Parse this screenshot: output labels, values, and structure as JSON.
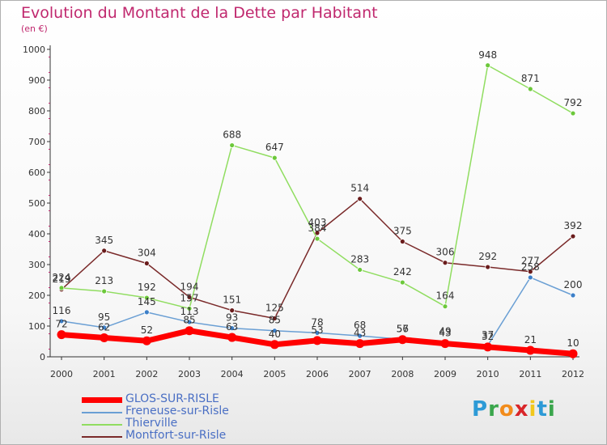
{
  "title": "Evolution du Montant de la Dette par Habitant",
  "subtitle": "(en €)",
  "logo": {
    "text": "Proxiti",
    "letters": [
      {
        "ch": "P",
        "color": "#2d9ad6"
      },
      {
        "ch": "r",
        "color": "#3aa64c"
      },
      {
        "ch": "o",
        "color": "#f28c1c"
      },
      {
        "ch": "x",
        "color": "#d9262a"
      },
      {
        "ch": "i",
        "color": "#f2c81c"
      },
      {
        "ch": "t",
        "color": "#2d9ad6"
      },
      {
        "ch": "i",
        "color": "#3aa64c"
      }
    ]
  },
  "chart_data": {
    "type": "line",
    "x": [
      "2000",
      "2001",
      "2002",
      "2003",
      "2004",
      "2005",
      "2006",
      "2007",
      "2008",
      "2009",
      "2010",
      "2011",
      "2012"
    ],
    "y_ticks": [
      0,
      100,
      200,
      300,
      400,
      500,
      600,
      700,
      800,
      900,
      1000
    ],
    "ylim": [
      0,
      1000
    ],
    "grid": false,
    "legend_position": "bottom-left",
    "series": [
      {
        "name": "GLOS-SUR-RISLE",
        "color": "#ff0000",
        "marker": "#ff0000",
        "width": 7,
        "values": [
          72,
          62,
          52,
          85,
          63,
          40,
          53,
          43,
          56,
          43,
          32,
          21,
          10
        ],
        "labels": [
          "72",
          "62",
          "52",
          "85",
          "63",
          "40",
          "53",
          "43",
          "56",
          "43",
          "32",
          "21",
          "10"
        ]
      },
      {
        "name": "Freneuse-sur-Risle",
        "color": "#6a9fd4",
        "marker": "#3c7fc8",
        "width": 1.5,
        "values": [
          116,
          95,
          145,
          113,
          93,
          85,
          78,
          68,
          57,
          49,
          37,
          258,
          200
        ],
        "labels": [
          "116",
          "95",
          "145",
          "113",
          "93",
          "85",
          "78",
          "68",
          "57",
          "49",
          "37",
          "258",
          "200"
        ]
      },
      {
        "name": "Thierville",
        "color": "#90dd60",
        "marker": "#6cc83a",
        "width": 1.5,
        "values": [
          224,
          213,
          192,
          157,
          688,
          647,
          384,
          283,
          242,
          164,
          948,
          871,
          792
        ],
        "labels": [
          "224",
          "213",
          "192",
          "157",
          "688",
          "647",
          "384",
          "283",
          "242",
          "164",
          "948",
          "871",
          "792"
        ]
      },
      {
        "name": "Montfort-sur-Risle",
        "color": "#7a2a2a",
        "marker": "#6a1c1c",
        "width": 1.5,
        "values": [
          219,
          345,
          304,
          194,
          151,
          125,
          403,
          514,
          375,
          306,
          292,
          277,
          392
        ],
        "labels": [
          "219",
          "345",
          "304",
          "194",
          "151",
          "125",
          "403",
          "514",
          "375",
          "306",
          "292",
          "277",
          "392"
        ]
      }
    ]
  }
}
